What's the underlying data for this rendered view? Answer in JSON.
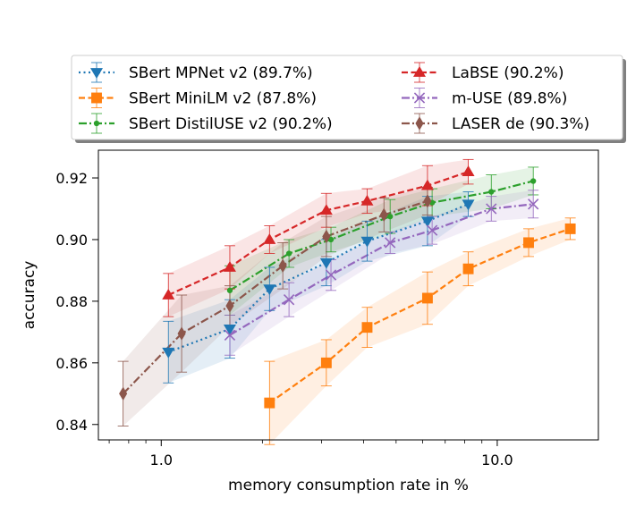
{
  "chart_data": {
    "type": "line",
    "title": "",
    "xlabel": "memory consumption rate in %",
    "ylabel": "accuracy",
    "xscale": "log",
    "xlim": [
      0.65,
      20
    ],
    "ylim": [
      0.835,
      0.929
    ],
    "xticks": [
      1.0,
      10.0
    ],
    "xtick_labels": [
      "1.0",
      "10.0"
    ],
    "yticks": [
      0.84,
      0.86,
      0.88,
      0.9,
      0.92
    ],
    "ytick_labels": [
      "0.84",
      "0.86",
      "0.88",
      "0.90",
      "0.92"
    ],
    "legend_position": "above plot",
    "series": [
      {
        "name": "SBert MPNet v2 (89.7%)",
        "color": "#1f77b4",
        "linestyle": "dotted",
        "marker": "triangle-down",
        "x": [
          1.05,
          1.6,
          2.1,
          3.1,
          4.1,
          6.2,
          8.2
        ],
        "y": [
          0.8635,
          0.871,
          0.884,
          0.8925,
          0.8995,
          0.906,
          0.9115
        ],
        "err": [
          0.01,
          0.0095,
          0.007,
          0.0075,
          0.0065,
          0.008,
          0.004
        ]
      },
      {
        "name": "SBert MiniLM v2 (87.8%)",
        "color": "#ff7f0e",
        "linestyle": "dashed",
        "marker": "square",
        "x": [
          2.1,
          3.1,
          4.1,
          6.2,
          8.2,
          12.4,
          16.5
        ],
        "y": [
          0.847,
          0.86,
          0.8715,
          0.881,
          0.8905,
          0.899,
          0.9035
        ],
        "err": [
          0.0135,
          0.0075,
          0.0065,
          0.0085,
          0.0055,
          0.0045,
          0.0035
        ]
      },
      {
        "name": "SBert DistilUSE v2 (90.2%)",
        "color": "#2ca02c",
        "linestyle": "dashdot",
        "marker": "point",
        "x": [
          1.6,
          2.4,
          3.2,
          4.8,
          6.4,
          9.6,
          12.8
        ],
        "y": [
          0.8835,
          0.8955,
          0.9,
          0.9075,
          0.912,
          0.9155,
          0.919
        ],
        "err": [
          0.008,
          0.0045,
          0.004,
          0.0055,
          0.0045,
          0.0055,
          0.0045
        ]
      },
      {
        "name": "LaBSE (90.2%)",
        "color": "#d62728",
        "linestyle": "dashed",
        "marker": "triangle-up",
        "x": [
          1.05,
          1.6,
          2.1,
          3.1,
          4.1,
          6.2,
          8.2
        ],
        "y": [
          0.882,
          0.891,
          0.9,
          0.9095,
          0.9125,
          0.9175,
          0.922
        ],
        "err": [
          0.007,
          0.007,
          0.0045,
          0.0055,
          0.004,
          0.0065,
          0.004
        ]
      },
      {
        "name": "m-USE (89.8%)",
        "color": "#9467bd",
        "linestyle": "dashdot",
        "marker": "x",
        "x": [
          1.6,
          2.4,
          3.2,
          4.8,
          6.4,
          9.6,
          12.8
        ],
        "y": [
          0.869,
          0.8805,
          0.8885,
          0.899,
          0.903,
          0.91,
          0.9115
        ],
        "err": [
          0.0065,
          0.0055,
          0.005,
          0.0035,
          0.0045,
          0.004,
          0.0045
        ]
      },
      {
        "name": "LASER de (90.3%)",
        "color": "#8c564b",
        "linestyle": "dashdot",
        "marker": "diamond",
        "x": [
          0.77,
          1.15,
          1.6,
          2.3,
          3.1,
          4.6,
          6.2
        ],
        "y": [
          0.85,
          0.8695,
          0.8785,
          0.8915,
          0.901,
          0.908,
          0.9125
        ],
        "err": [
          0.0105,
          0.0125,
          0.0065,
          0.0075,
          0.0065,
          0.0055,
          0.0045
        ]
      }
    ]
  }
}
